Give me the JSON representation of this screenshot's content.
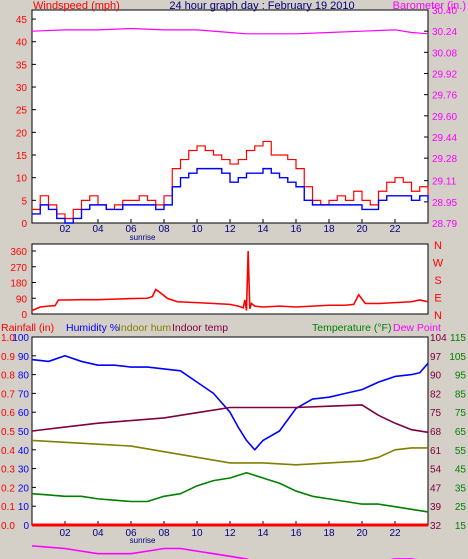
{
  "chart_data": [
    {
      "type": "line",
      "title": "24 hour graph day : February 19 2010",
      "left_axis_label": "Windspeed (mph)",
      "right_axis_label": "Barometer (in.)",
      "y_left_ticks": [
        0,
        5,
        10,
        15,
        20,
        25,
        30,
        35,
        40,
        45
      ],
      "y_left_range": [
        0,
        47
      ],
      "y_right_ticks": [
        "28.79",
        "28.95",
        "29.11",
        "29.28",
        "29.44",
        "29.60",
        "29.76",
        "29.92",
        "30.08",
        "30.24",
        "30.40"
      ],
      "y_right_range": [
        28.79,
        30.4
      ],
      "x_tick_labels": [
        "02",
        "04",
        "06",
        "08",
        "10",
        "12",
        "14",
        "16",
        "18",
        "20",
        "22"
      ],
      "x_range": [
        0,
        24
      ],
      "sunrise_label": "sunrise",
      "sunrise_hour": 6.7,
      "colors": {
        "gust": "#ff0000",
        "wind": "#0000ff",
        "barometer": "#ff00ff"
      },
      "series": [
        {
          "key": "gust",
          "x": [
            0,
            0.5,
            1,
            1.5,
            2,
            2.5,
            3,
            3.5,
            4,
            4.5,
            5,
            5.5,
            6,
            6.5,
            7,
            7.5,
            8,
            8.5,
            9,
            9.5,
            10,
            10.5,
            11,
            11.5,
            12,
            12.5,
            13,
            13.5,
            14,
            14.5,
            15,
            15.5,
            16,
            16.5,
            17,
            17.5,
            18,
            18.5,
            19,
            19.5,
            20,
            20.5,
            21,
            21.5,
            22,
            22.5,
            23,
            23.5,
            24
          ],
          "values": [
            3,
            6,
            4,
            2,
            1,
            3,
            5,
            6,
            4,
            3,
            4,
            5,
            5,
            6,
            5,
            4,
            6,
            12,
            14,
            16,
            17,
            16,
            15,
            14,
            13,
            14,
            16,
            17,
            18,
            15,
            15,
            14,
            12,
            8,
            5,
            4,
            5,
            6,
            5,
            7,
            5,
            4,
            7,
            9,
            10,
            9,
            7,
            8,
            6
          ]
        },
        {
          "key": "wind",
          "x": [
            0,
            0.5,
            1,
            1.5,
            2,
            2.5,
            3,
            3.5,
            4,
            4.5,
            5,
            5.5,
            6,
            6.5,
            7,
            7.5,
            8,
            8.5,
            9,
            9.5,
            10,
            10.5,
            11,
            11.5,
            12,
            12.5,
            13,
            13.5,
            14,
            14.5,
            15,
            15.5,
            16,
            16.5,
            17,
            17.5,
            18,
            18.5,
            19,
            19.5,
            20,
            20.5,
            21,
            21.5,
            22,
            22.5,
            23,
            23.5,
            24
          ],
          "values": [
            2,
            4,
            3,
            1,
            0,
            1,
            3,
            4,
            4,
            3,
            3,
            4,
            4,
            4,
            4,
            3,
            4,
            8,
            10,
            11,
            12,
            12,
            12,
            11,
            9,
            10,
            11,
            11,
            12,
            11,
            10,
            9,
            8,
            5,
            4,
            4,
            4,
            4,
            4,
            4,
            3,
            3,
            5,
            6,
            6,
            6,
            5,
            6,
            5
          ]
        },
        {
          "key": "barometer",
          "x": [
            0,
            2,
            4,
            6,
            8,
            10,
            12,
            13,
            14,
            16,
            18,
            20,
            22,
            23,
            24
          ],
          "values": [
            30.24,
            30.25,
            30.25,
            30.26,
            30.25,
            30.25,
            30.23,
            30.22,
            30.22,
            30.22,
            30.23,
            30.24,
            30.25,
            30.23,
            30.22
          ]
        }
      ]
    },
    {
      "type": "line",
      "y_ticks": [
        "0",
        "90",
        "180",
        "270",
        "360"
      ],
      "y_range": [
        0,
        400
      ],
      "compass_labels": [
        "N",
        "W",
        "S",
        "E",
        "N"
      ],
      "x_range": [
        0,
        24
      ],
      "colors": {
        "direction": "#ff0000"
      },
      "series": [
        {
          "key": "direction",
          "x": [
            0,
            0.5,
            1,
            1.4,
            1.6,
            2,
            3,
            4,
            5,
            6,
            7,
            7.3,
            7.5,
            7.8,
            8.2,
            8.8,
            10,
            11,
            12,
            12.5,
            12.8,
            12.9,
            13,
            13.1,
            13.2,
            13.3,
            13.5,
            14,
            15,
            16,
            17,
            18,
            19,
            19.5,
            19.8,
            20.2,
            21,
            22,
            23,
            23.5,
            24
          ],
          "values": [
            20,
            40,
            45,
            48,
            80,
            80,
            82,
            82,
            85,
            88,
            90,
            100,
            140,
            120,
            90,
            70,
            65,
            60,
            55,
            45,
            35,
            80,
            20,
            360,
            30,
            60,
            45,
            40,
            45,
            40,
            45,
            50,
            50,
            55,
            110,
            60,
            60,
            65,
            70,
            80,
            70
          ]
        }
      ]
    },
    {
      "type": "line",
      "labels": [
        "Rainfall (in)",
        "Humidity %",
        "Indoor hum",
        "Indoor temp",
        "Temperature (°F)",
        "Dew Point"
      ],
      "y_rain_ticks": [
        "0.0",
        "0.1",
        "0.2",
        "0.3",
        "0.4",
        "0.5",
        "0.6",
        "0.7",
        "0.8",
        "0.9",
        "1.0"
      ],
      "y_rain_range": [
        0,
        1.0
      ],
      "y_hum_ticks": [
        "0",
        "10",
        "20",
        "30",
        "40",
        "50",
        "60",
        "70",
        "80",
        "90",
        "100"
      ],
      "y_hum_range": [
        0,
        100
      ],
      "y_temp_ticks": [
        "32",
        "39",
        "47",
        "54",
        "61",
        "68",
        "75",
        "82",
        "90",
        "97",
        "104"
      ],
      "y_dew_ticks": [
        "15",
        "25",
        "35",
        "45",
        "55",
        "65",
        "75",
        "85",
        "95",
        "105",
        "115"
      ],
      "y_temp_range": [
        32,
        104
      ],
      "x_tick_labels": [
        "02",
        "04",
        "06",
        "08",
        "10",
        "12",
        "14",
        "16",
        "18",
        "20",
        "22"
      ],
      "x_range": [
        0,
        24
      ],
      "sunrise_label": "sunrise",
      "sunrise_hour": 6.7,
      "colors": {
        "rain": "#ff0000",
        "humidity": "#0000ff",
        "indoor_hum": "#808000",
        "indoor_temp": "#800040",
        "temperature": "#008000",
        "dewpoint": "#ff00ff"
      },
      "series": [
        {
          "key": "rain",
          "x": [
            0,
            24
          ],
          "values": [
            0,
            0
          ]
        },
        {
          "key": "humidity",
          "x": [
            0,
            1,
            2,
            3,
            4,
            5,
            6,
            7,
            8,
            9,
            10,
            11,
            12,
            12.5,
            13,
            13.5,
            14,
            15,
            16,
            17,
            18,
            19,
            20,
            21,
            22,
            23,
            23.5,
            24
          ],
          "values": [
            88,
            87,
            90,
            87,
            85,
            85,
            84,
            84,
            83,
            82,
            76,
            70,
            60,
            52,
            45,
            40,
            45,
            50,
            62,
            67,
            68,
            70,
            72,
            76,
            79,
            80,
            81,
            86
          ]
        },
        {
          "key": "indoor_hum",
          "x": [
            0,
            2,
            4,
            6,
            8,
            10,
            12,
            14,
            16,
            18,
            20,
            21,
            22,
            23,
            24
          ],
          "values": [
            45,
            44,
            43,
            42,
            39,
            36,
            33,
            33,
            32,
            33,
            34,
            36,
            40,
            41,
            41
          ]
        },
        {
          "key": "indoor_temp",
          "x": [
            0,
            2,
            4,
            6,
            8,
            10,
            12,
            14,
            16,
            18,
            20,
            21,
            22,
            23,
            24
          ],
          "values": [
            68,
            69.5,
            71,
            72,
            73,
            75,
            77,
            77,
            77,
            77.5,
            78,
            74,
            71,
            68.5,
            67.5
          ]
        },
        {
          "key": "temperature",
          "x": [
            0,
            1,
            2,
            3,
            4,
            5,
            6,
            7,
            8,
            9,
            10,
            11,
            12,
            13,
            14,
            15,
            16,
            17,
            18,
            19,
            20,
            21,
            22,
            23,
            24
          ],
          "values": [
            44,
            43.5,
            43,
            43,
            42,
            41.5,
            41,
            41,
            43,
            44,
            47,
            49,
            50,
            52,
            50,
            48,
            45,
            43,
            42,
            41,
            40,
            40,
            39,
            38,
            37
          ]
        },
        {
          "key": "dewpoint",
          "x": [
            0,
            1,
            2,
            3,
            4,
            5,
            6,
            7,
            8,
            9,
            10,
            11,
            12,
            13,
            14,
            15,
            16,
            17,
            18,
            19,
            20,
            21,
            22,
            23,
            24
          ],
          "values": [
            24,
            23.5,
            23,
            22,
            21,
            21,
            21,
            22,
            23,
            23,
            22,
            21,
            20,
            19,
            17,
            16,
            16,
            16,
            17,
            17,
            18,
            18,
            19,
            19,
            18
          ]
        }
      ]
    }
  ]
}
